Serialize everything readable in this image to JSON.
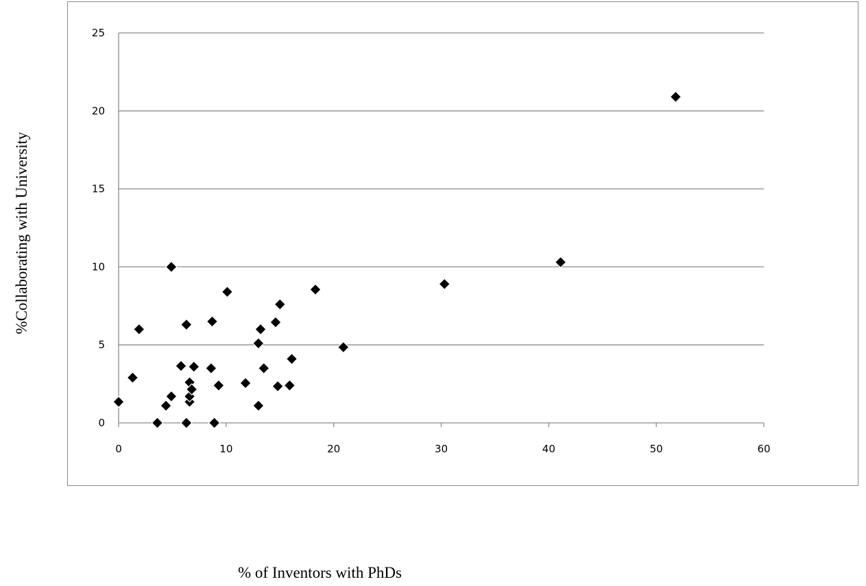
{
  "chart_data": {
    "type": "scatter",
    "title": "",
    "xlabel": "% of Inventors with PhDs",
    "ylabel": "%Collaborating with University",
    "xlim": [
      0,
      60
    ],
    "ylim": [
      0,
      25
    ],
    "x_ticks": [
      "0",
      "10",
      "20",
      "30",
      "40",
      "50",
      "60"
    ],
    "y_ticks": [
      "0",
      "5",
      "10",
      "15",
      "20",
      "25"
    ],
    "grid": "horizontal",
    "legend": "none",
    "marker": "diamond",
    "marker_color": "#000000",
    "series": [
      {
        "points": [
          {
            "x": 0.0,
            "y": 1.35
          },
          {
            "x": 1.3,
            "y": 2.9
          },
          {
            "x": 1.9,
            "y": 6.0
          },
          {
            "x": 3.6,
            "y": 0.0
          },
          {
            "x": 4.4,
            "y": 1.1
          },
          {
            "x": 4.9,
            "y": 1.7
          },
          {
            "x": 4.9,
            "y": 10.0
          },
          {
            "x": 5.8,
            "y": 3.65
          },
          {
            "x": 6.3,
            "y": 0.0
          },
          {
            "x": 6.3,
            "y": 6.3
          },
          {
            "x": 6.6,
            "y": 1.35
          },
          {
            "x": 6.6,
            "y": 1.7
          },
          {
            "x": 6.6,
            "y": 2.6
          },
          {
            "x": 6.8,
            "y": 2.15
          },
          {
            "x": 7.0,
            "y": 3.6
          },
          {
            "x": 8.6,
            "y": 3.5
          },
          {
            "x": 8.7,
            "y": 6.5
          },
          {
            "x": 8.9,
            "y": 0.0
          },
          {
            "x": 9.3,
            "y": 2.4
          },
          {
            "x": 10.1,
            "y": 8.4
          },
          {
            "x": 11.8,
            "y": 2.55
          },
          {
            "x": 13.0,
            "y": 1.1
          },
          {
            "x": 13.0,
            "y": 5.1
          },
          {
            "x": 13.2,
            "y": 6.0
          },
          {
            "x": 13.5,
            "y": 3.5
          },
          {
            "x": 14.6,
            "y": 6.45
          },
          {
            "x": 14.8,
            "y": 2.35
          },
          {
            "x": 15.0,
            "y": 7.6
          },
          {
            "x": 15.9,
            "y": 2.4
          },
          {
            "x": 16.1,
            "y": 4.1
          },
          {
            "x": 18.3,
            "y": 8.55
          },
          {
            "x": 20.9,
            "y": 4.85
          },
          {
            "x": 30.3,
            "y": 8.9
          },
          {
            "x": 41.1,
            "y": 10.3
          },
          {
            "x": 51.8,
            "y": 20.9
          }
        ]
      }
    ]
  }
}
